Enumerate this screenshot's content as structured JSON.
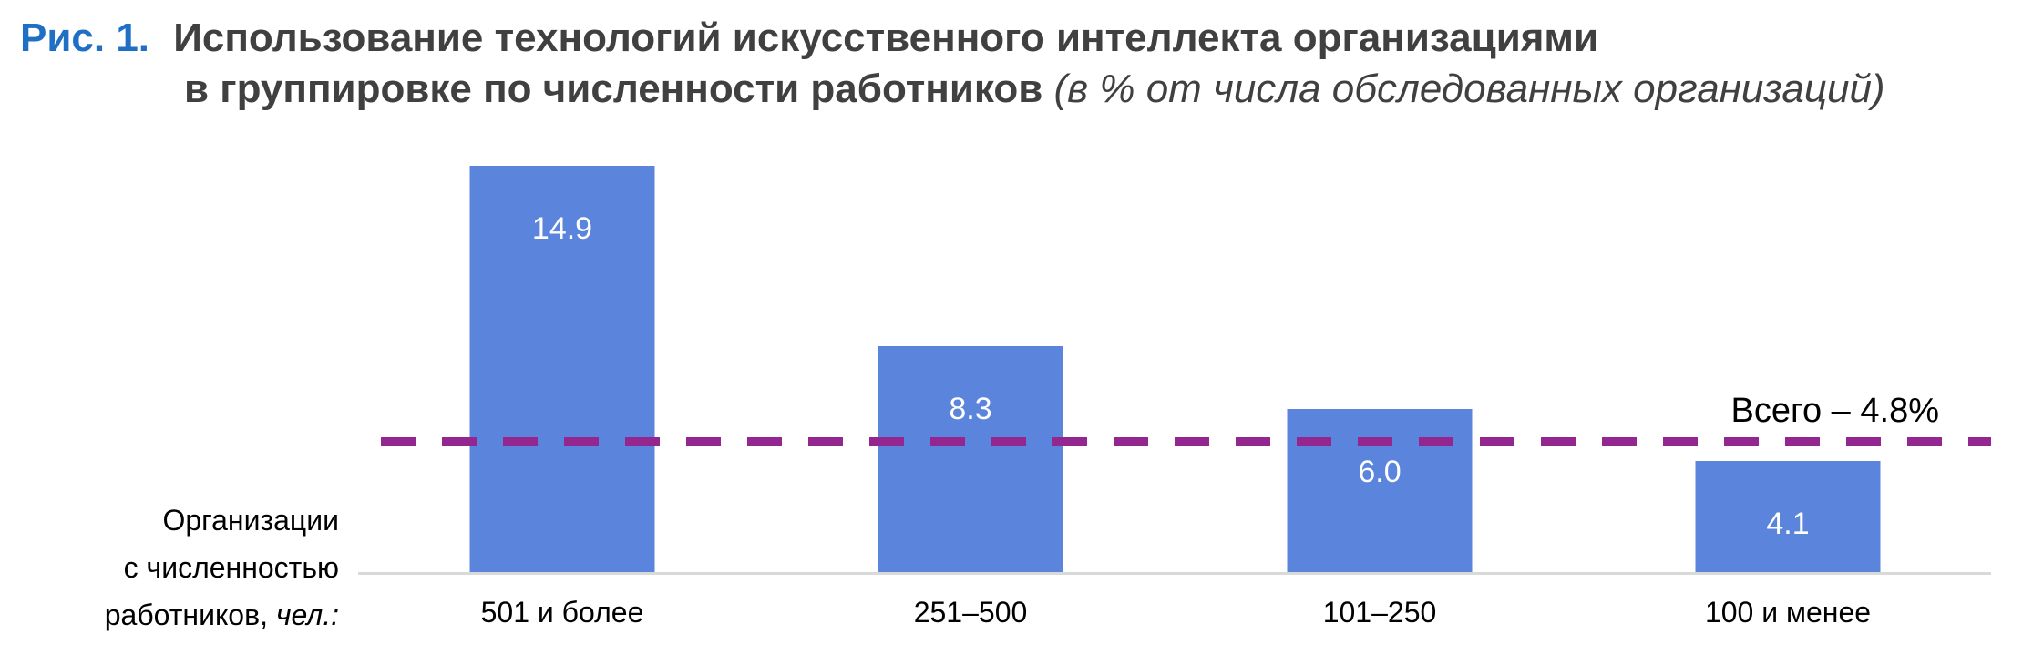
{
  "header": {
    "fig_label": "Рис. 1.",
    "title_line1": "Использование технологий искусственного интеллекта организациями",
    "title_line2": "в группировке по численности работников",
    "subtitle": "(в % от числа обследованных организаций)"
  },
  "chart_data": {
    "type": "bar",
    "title": "Использование технологий искусственного интеллекта организациями в группировке по численности работников",
    "subtitle": "(в % от числа обследованных организаций)",
    "xlabel_lines": [
      "Организации",
      "с численностью",
      "работников, чел.:"
    ],
    "categories": [
      "501 и более",
      "251–500",
      "101–250",
      "100 и менее"
    ],
    "values": [
      14.9,
      8.3,
      6.0,
      4.1
    ],
    "value_labels": [
      "14.9",
      "8.3",
      "6.0",
      "4.1"
    ],
    "ylim": [
      0,
      14.9
    ],
    "reference_line": {
      "value": 4.8,
      "label": "Всего – 4.8%",
      "style": "dashed"
    },
    "grid": false,
    "colors": {
      "bar": "#5b84dc",
      "reference_line": "#93278f",
      "axis": "#d9d9d9",
      "fig_label": "#1f6fc5",
      "title": "#404040"
    }
  }
}
